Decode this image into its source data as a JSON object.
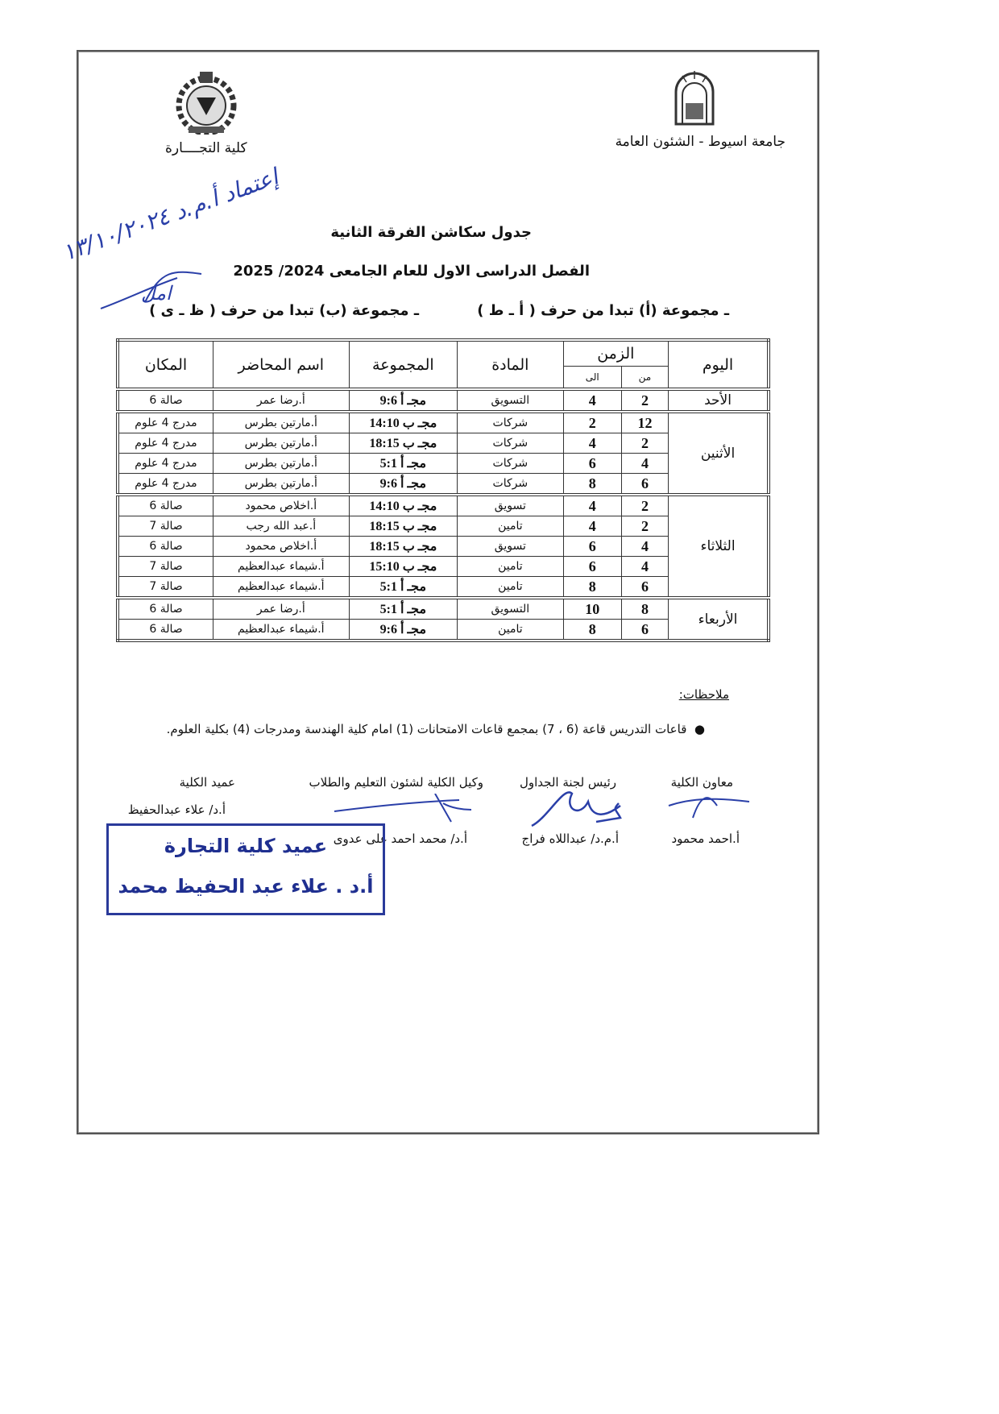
{
  "header": {
    "university": "جامعة اسيوط - الشئون العامة",
    "university_logo_text": "جامعة اسيوط",
    "faculty": "كلية التجــــارة",
    "title": "جدول سكاشن الفرقة الثانية",
    "subtitle": "الفصل الدراسى الاول للعام الجامعى 2024/ 2025",
    "group_a": "ـ مجموعة (أ) تبدا من حرف ( أ ـ ط )",
    "group_b": "ـ مجموعة (ب) تبدا من حرف ( ظ ـ ى )"
  },
  "handwriting": {
    "line1": "إعتماد أ.م.د ١٣/١٠/٢٠٢٤",
    "sign": "امل"
  },
  "table": {
    "headers": {
      "day": "اليوم",
      "time": "الزمن",
      "from": "من",
      "to": "الى",
      "subject": "المادة",
      "group": "المجموعة",
      "lecturer": "اسم المحاضر",
      "place": "المكان"
    },
    "days": [
      {
        "day": "الأحد",
        "rows": [
          {
            "from": "2",
            "to": "4",
            "subject": "التسويق",
            "group": "مجـ أ 9:6",
            "lecturer": "أ.رضا عمر",
            "place": "صالة 6"
          }
        ]
      },
      {
        "day": "الأثنين",
        "rows": [
          {
            "from": "12",
            "to": "2",
            "subject": "شركات",
            "group": "مجـ ب 14:10",
            "lecturer": "أ.مارتين بطرس",
            "place": "مدرج 4 علوم"
          },
          {
            "from": "2",
            "to": "4",
            "subject": "شركات",
            "group": "مجـ ب 18:15",
            "lecturer": "أ.مارتين بطرس",
            "place": "مدرج 4 علوم"
          },
          {
            "from": "4",
            "to": "6",
            "subject": "شركات",
            "group": "مجـ أ 5:1",
            "lecturer": "أ.مارتين بطرس",
            "place": "مدرج 4 علوم"
          },
          {
            "from": "6",
            "to": "8",
            "subject": "شركات",
            "group": "مجـ أ 9:6",
            "lecturer": "أ.مارتين بطرس",
            "place": "مدرج 4 علوم"
          }
        ]
      },
      {
        "day": "الثلاثاء",
        "rows": [
          {
            "from": "2",
            "to": "4",
            "subject": "تسويق",
            "group": "مجـ ب 14:10",
            "lecturer": "أ.اخلاص محمود",
            "place": "صالة 6"
          },
          {
            "from": "2",
            "to": "4",
            "subject": "تامين",
            "group": "مجـ ب 18:15",
            "lecturer": "أ.عبد الله رجب",
            "place": "صالة 7"
          },
          {
            "from": "4",
            "to": "6",
            "subject": "تسويق",
            "group": "مجـ ب 18:15",
            "lecturer": "أ.اخلاص محمود",
            "place": "صالة 6"
          },
          {
            "from": "4",
            "to": "6",
            "subject": "تامين",
            "group": "مجـ ب 15:10",
            "lecturer": "أ.شيماء عبدالعظيم",
            "place": "صالة 7"
          },
          {
            "from": "6",
            "to": "8",
            "subject": "تامين",
            "group": "مجـ أ 5:1",
            "lecturer": "أ.شيماء عبدالعظيم",
            "place": "صالة 7"
          }
        ]
      },
      {
        "day": "الأربعاء",
        "rows": [
          {
            "from": "8",
            "to": "10",
            "subject": "التسويق",
            "group": "مجـ أ 5:1",
            "lecturer": "أ.رضا عمر",
            "place": "صالة 6"
          },
          {
            "from": "6",
            "to": "8",
            "subject": "تامين",
            "group": "مجـ أ 9:6",
            "lecturer": "أ.شيماء عبدالعظيم",
            "place": "صالة 6"
          }
        ]
      }
    ]
  },
  "notes": {
    "heading": "ملاحظات:",
    "items": [
      "قاعات التدريس قاعة (6 ، 7) بمجمع قاعات الامتحانات (1) امام كلية الهندسة ومدرجات (4) بكلية العلوم."
    ]
  },
  "signatures": [
    {
      "role": "معاون الكلية",
      "name": "أ.احمد محمود"
    },
    {
      "role": "رئيس لجنة الجداول",
      "name": "أ.م.د/ عبداللاه فراج"
    },
    {
      "role": "وكيل الكلية لشئون التعليم والطلاب",
      "name": "أ.د/ محمد احمد على عدوى"
    },
    {
      "role": "عميد الكلية",
      "name": "أ.د/ علاء عبدالحفيظ"
    }
  ],
  "stamp": {
    "line1": "عميد كلية التجارة",
    "line2": "أ.د . علاء عبد الحفيظ محمد"
  },
  "colors": {
    "ink_blue": "#2a3fa8",
    "stamp_blue": "#1f2f90"
  }
}
